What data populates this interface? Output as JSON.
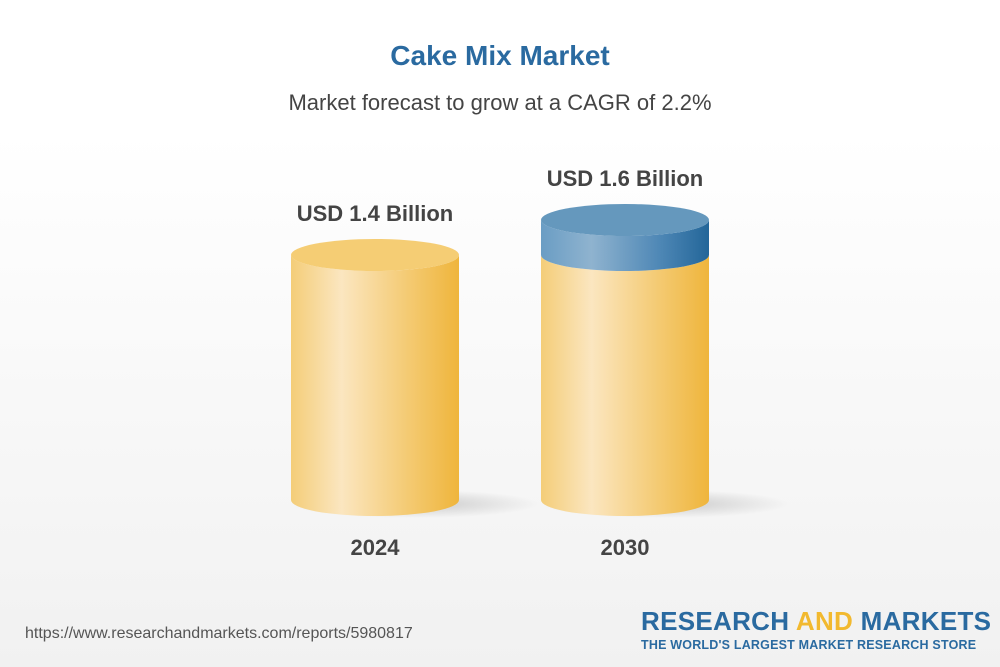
{
  "chart_data": {
    "type": "bar",
    "style": "3d-cylinder",
    "title": "Cake Mix Market",
    "subtitle": "Market forecast to grow at a CAGR of 2.2%",
    "categories": [
      "2024",
      "2030"
    ],
    "values": [
      1.4,
      1.6
    ],
    "value_labels": [
      "USD 1.4 Billion",
      "USD 1.6 Billion"
    ],
    "unit": "USD Billion",
    "colors": {
      "bar": "#f2c25a",
      "highlight": "#fbe6c0",
      "growth_segment": "#2a6aa0",
      "title": "#2a6aa0"
    }
  },
  "footer": {
    "url": "https://www.researchandmarkets.com/reports/5980817",
    "logo": {
      "word1": "RESEARCH",
      "word2": "AND",
      "word3": "MARKETS",
      "tagline": "THE WORLD'S LARGEST MARKET RESEARCH STORE"
    }
  }
}
